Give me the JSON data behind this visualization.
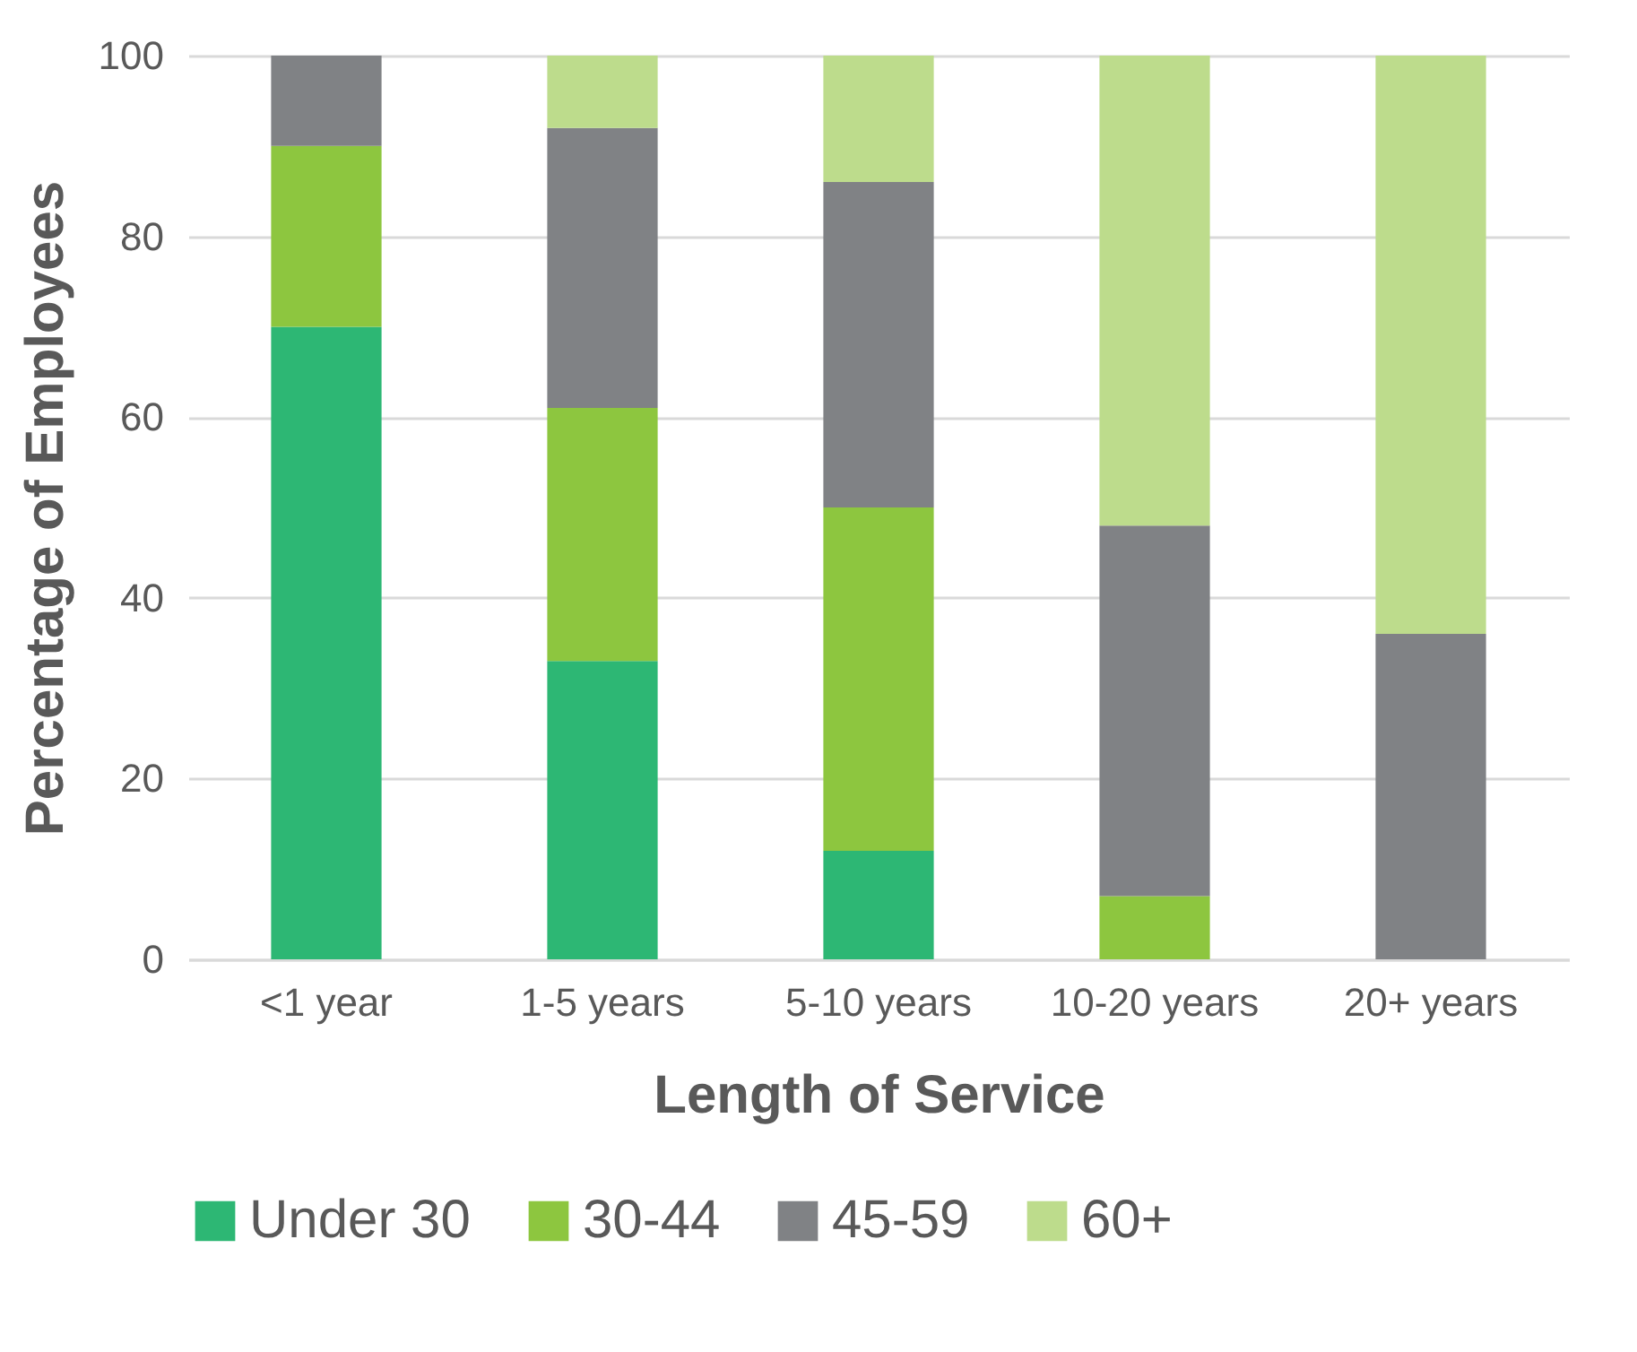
{
  "chart_data": {
    "type": "bar",
    "stacked": true,
    "xlabel": "Length of Service",
    "ylabel": "Percentage of Employees",
    "categories": [
      "<1 year",
      "1-5 years",
      "5-10 years",
      "10-20 years",
      "20+ years"
    ],
    "series": [
      {
        "name": "Under 30",
        "color": "#2db774",
        "values": [
          70,
          33,
          12,
          0,
          0
        ]
      },
      {
        "name": "30-44",
        "color": "#8dc63f",
        "values": [
          20,
          28,
          38,
          7,
          0
        ]
      },
      {
        "name": "45-59",
        "color": "#808285",
        "values": [
          10,
          31,
          36,
          41,
          36
        ]
      },
      {
        "name": "60+",
        "color": "#bddc8c",
        "values": [
          0,
          8,
          14,
          52,
          64
        ]
      }
    ],
    "ylim": [
      0,
      100
    ],
    "yticks": [
      0,
      20,
      40,
      60,
      80,
      100
    ],
    "grid": "y",
    "legend": "bottom"
  }
}
